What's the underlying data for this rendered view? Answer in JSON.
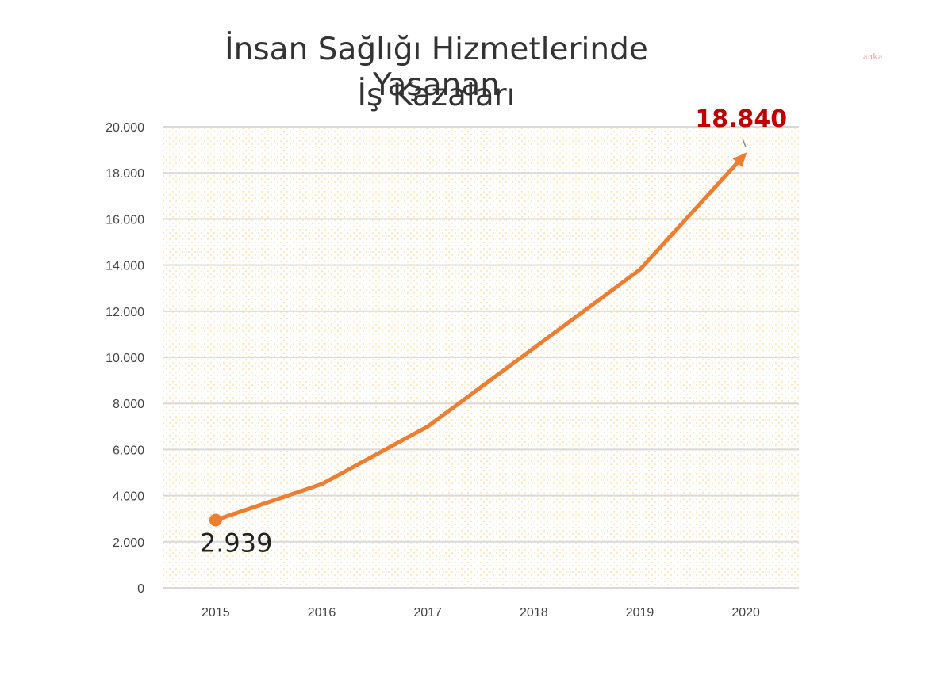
{
  "page": {
    "title_line1": "İnsan Sağlığı Hizmetlerinde Yaşanan",
    "title_line2": "İş Kazaları",
    "watermark": "anka"
  },
  "colors": {
    "line": "#ED7D31",
    "highlight_label": "#C00000",
    "grid": "#D9D9D9",
    "plot_background_dots": "#FCE9C6"
  },
  "chart_data": {
    "type": "line",
    "title": "İnsan Sağlığı Hizmetlerinde Yaşanan İş Kazaları",
    "categories": [
      "2015",
      "2016",
      "2017",
      "2018",
      "2019",
      "2020"
    ],
    "series": [
      {
        "values": [
          2939,
          4500,
          7000,
          10400,
          13800,
          18840
        ]
      }
    ],
    "data_labels": {
      "first": "2.939",
      "last": "18.840"
    },
    "y_tick_labels": [
      "0",
      "2.000",
      "4.000",
      "6.000",
      "8.000",
      "10.000",
      "12.000",
      "14.000",
      "16.000",
      "18.000",
      "20.000"
    ],
    "ylim": [
      0,
      20000
    ],
    "grid": true,
    "legend": "none",
    "xlabel": "",
    "ylabel": ""
  }
}
